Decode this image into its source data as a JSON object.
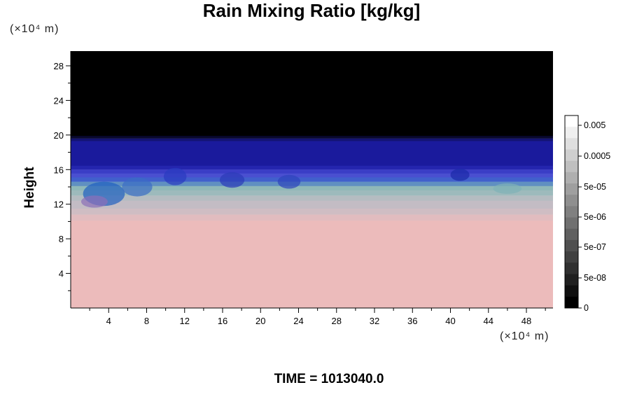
{
  "chart_data": {
    "type": "heatmap",
    "title": "Rain Mixing Ratio [kg/kg]",
    "ylabel": "Height",
    "xlabel": "",
    "x_unit": "(×10⁴ m)",
    "y_unit": "(×10⁴ m)",
    "x_ticks": [
      4,
      8,
      12,
      16,
      20,
      24,
      28,
      32,
      36,
      40,
      44,
      48
    ],
    "y_ticks": [
      4,
      8,
      12,
      16,
      20,
      24,
      28
    ],
    "xlim": [
      0,
      50.8
    ],
    "ylim": [
      0,
      29.7
    ],
    "colorbar": {
      "labels": [
        "0.005",
        "0.0005",
        "5e-05",
        "5e-06",
        "5e-07",
        "5e-08",
        "0"
      ],
      "levels": 17
    },
    "layers": [
      {
        "from": 0,
        "to": 10.8,
        "color": "#ecbbbb"
      },
      {
        "from": 10.8,
        "to": 13.0,
        "color": "#c3bcc4"
      },
      {
        "from": 13.0,
        "to": 14.6,
        "color": "#8fb8b8"
      },
      {
        "from": 14.6,
        "to": 16.0,
        "color": "#4a4fd0"
      },
      {
        "from": 16.0,
        "to": 19.6,
        "color": "#1a1a9c"
      },
      {
        "from": 19.6,
        "to": 29.7,
        "color": "#000000"
      }
    ],
    "time_label": "TIME = 1013040.0"
  },
  "colors": {
    "background": "#ffffff",
    "upper": "#000000",
    "lower": "#ecbbbb"
  }
}
